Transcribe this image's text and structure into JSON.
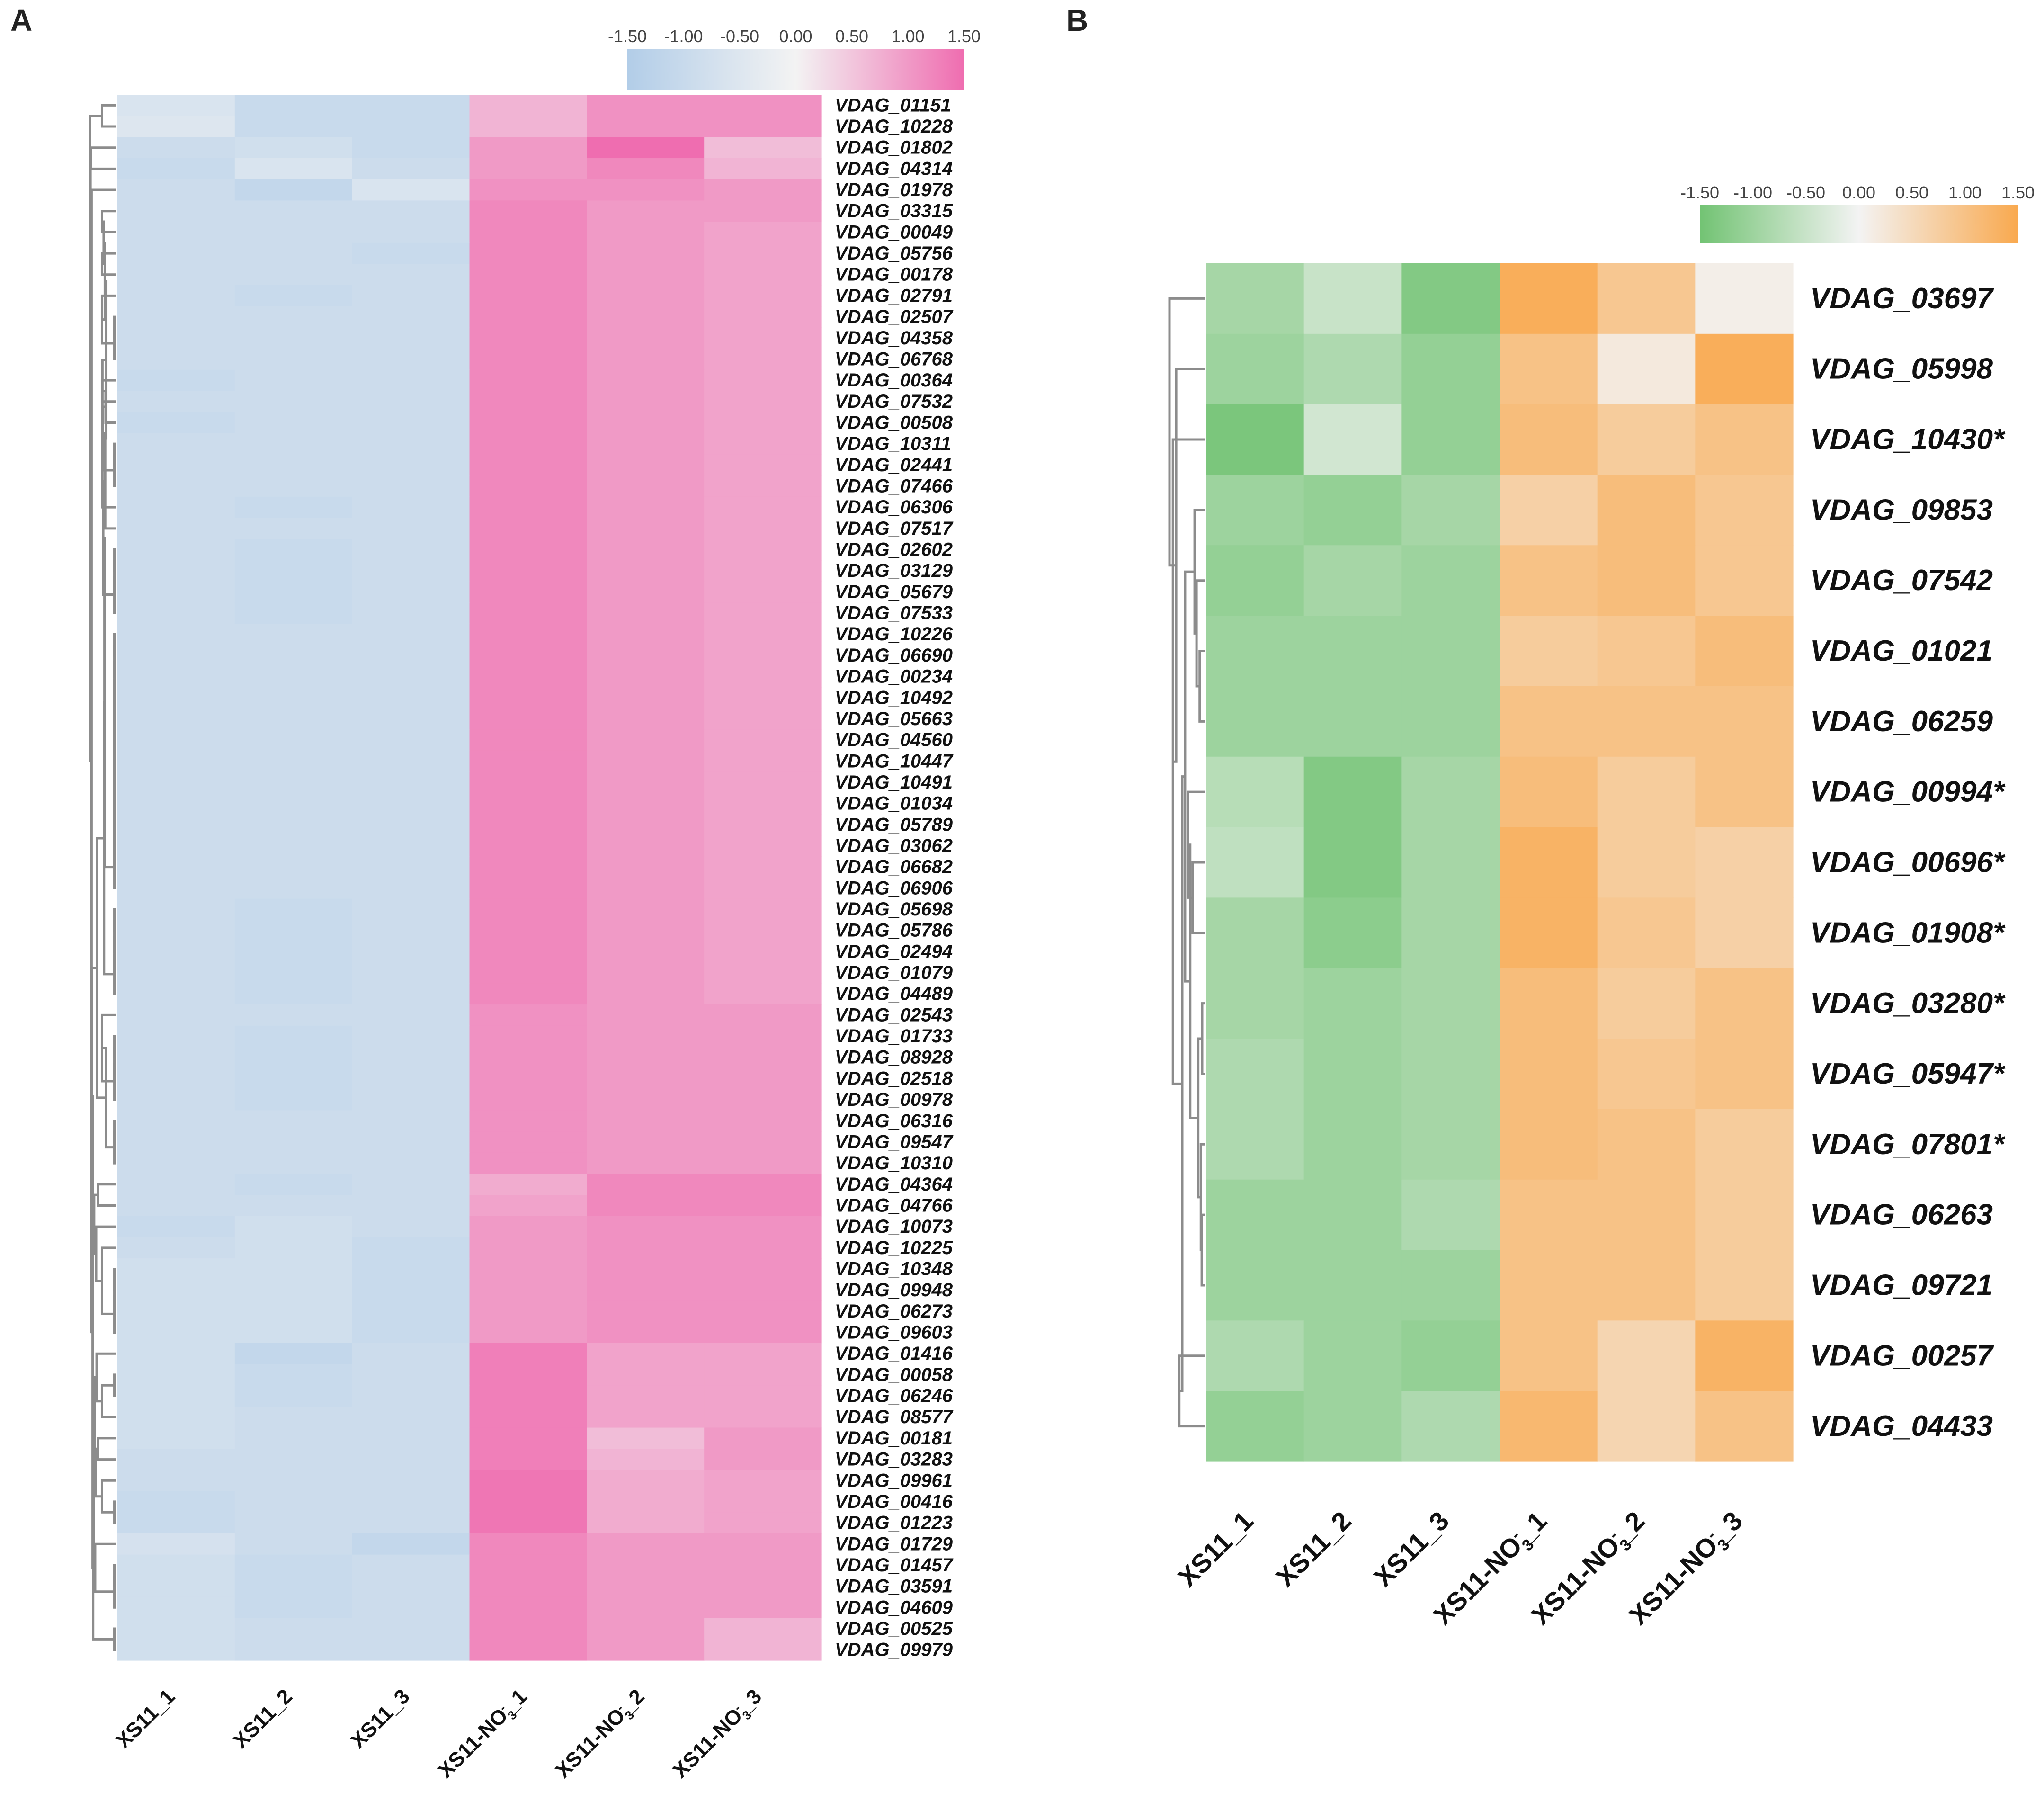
{
  "chart_data": [
    {
      "type": "heatmap",
      "panel_label": "A",
      "scale": {
        "min": -1.5,
        "max": 1.5,
        "ticks": [
          "-1.50",
          "-1.00",
          "-0.50",
          "0.00",
          "0.50",
          "1.00",
          "1.50"
        ],
        "colors": {
          "low": "#b2cde8",
          "mid": "#f3f3f3",
          "high": "#ef6db0"
        }
      },
      "columns": [
        "XS11_1",
        "XS11_2",
        "XS11_3",
        "XS11-NO3-_1",
        "XS11-NO3-_2",
        "XS11-NO3-_3"
      ],
      "column_labels": [
        {
          "base": "XS11_1",
          "sub": "",
          "sup": "",
          "tail": ""
        },
        {
          "base": "XS11_2",
          "sub": "",
          "sup": "",
          "tail": ""
        },
        {
          "base": "XS11_3",
          "sub": "",
          "sup": "",
          "tail": ""
        },
        {
          "base": "XS11-NO",
          "sub": "3",
          "sup": "-",
          "tail": "_1"
        },
        {
          "base": "XS11-NO",
          "sub": "3",
          "sup": "-",
          "tail": "_2"
        },
        {
          "base": "XS11-NO",
          "sub": "3",
          "sup": "-",
          "tail": "_3"
        }
      ],
      "rows": [
        "VDAG_01151",
        "VDAG_10228",
        "VDAG_01802",
        "VDAG_04314",
        "VDAG_01978",
        "VDAG_03315",
        "VDAG_00049",
        "VDAG_05756",
        "VDAG_00178",
        "VDAG_02791",
        "VDAG_02507",
        "VDAG_04358",
        "VDAG_06768",
        "VDAG_00364",
        "VDAG_07532",
        "VDAG_00508",
        "VDAG_10311",
        "VDAG_02441",
        "VDAG_07466",
        "VDAG_06306",
        "VDAG_07517",
        "VDAG_02602",
        "VDAG_03129",
        "VDAG_05679",
        "VDAG_07533",
        "VDAG_10226",
        "VDAG_06690",
        "VDAG_00234",
        "VDAG_10492",
        "VDAG_05663",
        "VDAG_04560",
        "VDAG_10447",
        "VDAG_10491",
        "VDAG_01034",
        "VDAG_05789",
        "VDAG_03062",
        "VDAG_06682",
        "VDAG_06906",
        "VDAG_05698",
        "VDAG_05786",
        "VDAG_02494",
        "VDAG_01079",
        "VDAG_04489",
        "VDAG_02543",
        "VDAG_01733",
        "VDAG_08928",
        "VDAG_02518",
        "VDAG_00978",
        "VDAG_06316",
        "VDAG_09547",
        "VDAG_10310",
        "VDAG_04364",
        "VDAG_04766",
        "VDAG_10073",
        "VDAG_10225",
        "VDAG_10348",
        "VDAG_09948",
        "VDAG_06273",
        "VDAG_09603",
        "VDAG_01416",
        "VDAG_00058",
        "VDAG_06246",
        "VDAG_08577",
        "VDAG_00181",
        "VDAG_03283",
        "VDAG_09961",
        "VDAG_00416",
        "VDAG_01223",
        "VDAG_01729",
        "VDAG_01457",
        "VDAG_03591",
        "VDAG_04609",
        "VDAG_00525",
        "VDAG_09979"
      ],
      "values": [
        [
          -0.6,
          -1.0,
          -1.0,
          0.7,
          1.1,
          1.1
        ],
        [
          -0.5,
          -1.0,
          -1.0,
          0.7,
          1.1,
          1.1
        ],
        [
          -0.9,
          -0.8,
          -1.0,
          1.0,
          1.5,
          0.6
        ],
        [
          -1.0,
          -0.6,
          -0.9,
          1.0,
          1.2,
          0.7
        ],
        [
          -0.9,
          -1.1,
          -0.6,
          1.1,
          1.1,
          1.0
        ],
        [
          -0.9,
          -0.9,
          -0.9,
          1.2,
          1.0,
          1.0
        ],
        [
          -0.9,
          -0.9,
          -0.9,
          1.2,
          1.0,
          0.9
        ],
        [
          -0.9,
          -0.9,
          -1.0,
          1.2,
          1.0,
          0.9
        ],
        [
          -0.9,
          -0.9,
          -0.9,
          1.2,
          1.0,
          0.9
        ],
        [
          -0.9,
          -1.0,
          -0.9,
          1.2,
          1.0,
          0.9
        ],
        [
          -0.9,
          -0.9,
          -0.9,
          1.2,
          1.0,
          0.9
        ],
        [
          -0.9,
          -0.9,
          -0.9,
          1.2,
          1.0,
          0.9
        ],
        [
          -0.9,
          -0.9,
          -0.9,
          1.2,
          1.0,
          0.9
        ],
        [
          -1.0,
          -0.9,
          -0.9,
          1.2,
          1.0,
          0.9
        ],
        [
          -0.9,
          -0.9,
          -0.9,
          1.2,
          1.0,
          0.9
        ],
        [
          -1.0,
          -0.9,
          -0.9,
          1.2,
          1.0,
          0.9
        ],
        [
          -0.9,
          -0.9,
          -0.9,
          1.2,
          1.0,
          0.9
        ],
        [
          -0.9,
          -0.9,
          -0.9,
          1.2,
          1.0,
          0.9
        ],
        [
          -0.9,
          -0.9,
          -0.9,
          1.2,
          1.0,
          0.9
        ],
        [
          -0.9,
          -1.0,
          -0.9,
          1.2,
          1.0,
          0.9
        ],
        [
          -0.9,
          -0.9,
          -0.9,
          1.2,
          1.0,
          0.9
        ],
        [
          -0.9,
          -1.0,
          -0.9,
          1.2,
          1.0,
          0.9
        ],
        [
          -0.9,
          -1.0,
          -0.9,
          1.2,
          1.0,
          0.9
        ],
        [
          -0.9,
          -1.0,
          -0.9,
          1.2,
          1.0,
          0.9
        ],
        [
          -0.9,
          -1.0,
          -0.9,
          1.2,
          1.0,
          0.9
        ],
        [
          -0.9,
          -0.9,
          -0.9,
          1.2,
          1.0,
          0.9
        ],
        [
          -0.9,
          -0.9,
          -0.9,
          1.2,
          1.0,
          0.9
        ],
        [
          -0.9,
          -0.9,
          -0.9,
          1.2,
          1.0,
          0.9
        ],
        [
          -0.9,
          -0.9,
          -0.9,
          1.2,
          1.0,
          0.9
        ],
        [
          -0.9,
          -0.9,
          -0.9,
          1.2,
          1.0,
          0.9
        ],
        [
          -0.9,
          -0.9,
          -0.9,
          1.2,
          1.0,
          0.9
        ],
        [
          -0.9,
          -0.9,
          -0.9,
          1.2,
          1.0,
          0.9
        ],
        [
          -0.9,
          -0.9,
          -0.9,
          1.2,
          1.0,
          0.9
        ],
        [
          -0.9,
          -0.9,
          -0.9,
          1.2,
          1.0,
          0.9
        ],
        [
          -0.9,
          -0.9,
          -0.9,
          1.2,
          1.0,
          0.9
        ],
        [
          -0.9,
          -0.9,
          -0.9,
          1.2,
          1.0,
          0.9
        ],
        [
          -0.9,
          -0.9,
          -0.9,
          1.2,
          1.0,
          0.9
        ],
        [
          -0.9,
          -0.9,
          -0.9,
          1.2,
          1.0,
          0.9
        ],
        [
          -0.9,
          -1.0,
          -0.9,
          1.2,
          1.0,
          0.9
        ],
        [
          -0.9,
          -1.0,
          -0.9,
          1.2,
          1.0,
          0.9
        ],
        [
          -0.9,
          -1.0,
          -0.9,
          1.2,
          1.0,
          0.9
        ],
        [
          -0.9,
          -1.0,
          -0.9,
          1.2,
          1.0,
          0.9
        ],
        [
          -0.9,
          -1.0,
          -0.9,
          1.2,
          1.0,
          0.9
        ],
        [
          -0.9,
          -0.9,
          -0.9,
          1.1,
          1.0,
          1.0
        ],
        [
          -0.9,
          -1.0,
          -0.9,
          1.1,
          1.0,
          1.0
        ],
        [
          -0.9,
          -1.0,
          -0.9,
          1.1,
          1.0,
          1.0
        ],
        [
          -0.9,
          -1.0,
          -0.9,
          1.1,
          1.0,
          1.0
        ],
        [
          -0.9,
          -1.0,
          -0.9,
          1.1,
          1.0,
          1.0
        ],
        [
          -0.9,
          -0.9,
          -0.9,
          1.1,
          1.0,
          1.0
        ],
        [
          -0.9,
          -0.9,
          -0.9,
          1.1,
          1.0,
          1.0
        ],
        [
          -0.9,
          -0.9,
          -0.9,
          1.1,
          1.0,
          1.0
        ],
        [
          -0.9,
          -1.0,
          -0.9,
          0.8,
          1.2,
          1.2
        ],
        [
          -0.9,
          -0.9,
          -0.9,
          0.9,
          1.2,
          1.2
        ],
        [
          -1.0,
          -0.8,
          -0.9,
          1.0,
          1.1,
          1.1
        ],
        [
          -0.9,
          -0.8,
          -1.0,
          1.0,
          1.1,
          1.1
        ],
        [
          -0.8,
          -0.8,
          -1.0,
          1.0,
          1.1,
          1.1
        ],
        [
          -0.8,
          -0.8,
          -1.0,
          1.0,
          1.1,
          1.1
        ],
        [
          -0.8,
          -0.8,
          -1.0,
          1.0,
          1.1,
          1.1
        ],
        [
          -0.8,
          -0.8,
          -1.0,
          1.0,
          1.1,
          1.1
        ],
        [
          -0.8,
          -1.1,
          -0.9,
          1.3,
          0.9,
          0.9
        ],
        [
          -0.8,
          -1.0,
          -0.9,
          1.3,
          0.9,
          0.9
        ],
        [
          -0.8,
          -1.0,
          -0.9,
          1.3,
          0.9,
          0.9
        ],
        [
          -0.8,
          -0.9,
          -0.9,
          1.3,
          0.9,
          0.9
        ],
        [
          -0.8,
          -0.9,
          -0.9,
          1.3,
          0.6,
          1.0
        ],
        [
          -0.9,
          -0.9,
          -0.9,
          1.3,
          0.7,
          1.0
        ],
        [
          -0.9,
          -0.9,
          -0.9,
          1.4,
          0.8,
          0.9
        ],
        [
          -1.0,
          -0.9,
          -0.9,
          1.4,
          0.8,
          0.9
        ],
        [
          -1.0,
          -0.9,
          -0.9,
          1.4,
          0.8,
          0.9
        ],
        [
          -0.7,
          -0.9,
          -1.1,
          1.2,
          1.0,
          1.0
        ],
        [
          -0.8,
          -1.0,
          -0.9,
          1.2,
          1.0,
          1.0
        ],
        [
          -0.8,
          -1.0,
          -0.9,
          1.2,
          1.0,
          1.0
        ],
        [
          -0.8,
          -1.0,
          -0.9,
          1.2,
          1.0,
          1.0
        ],
        [
          -0.8,
          -0.9,
          -0.9,
          1.2,
          1.0,
          0.7
        ],
        [
          -0.8,
          -0.9,
          -0.9,
          1.2,
          1.0,
          0.7
        ]
      ]
    },
    {
      "type": "heatmap",
      "panel_label": "B",
      "scale": {
        "min": -1.5,
        "max": 1.5,
        "ticks": [
          "-1.50",
          "-1.00",
          "-0.50",
          "0.00",
          "0.50",
          "1.00",
          "1.50"
        ],
        "colors": {
          "low": "#72c373",
          "mid": "#f3f3f3",
          "high": "#f9a94f"
        }
      },
      "columns": [
        "XS11_1",
        "XS11_2",
        "XS11_3",
        "XS11-NO3-_1",
        "XS11-NO3-_2",
        "XS11-NO3-_3"
      ],
      "column_labels": [
        {
          "base": "XS11_1",
          "sub": "",
          "sup": "",
          "tail": ""
        },
        {
          "base": "XS11_2",
          "sub": "",
          "sup": "",
          "tail": ""
        },
        {
          "base": "XS11_3",
          "sub": "",
          "sup": "",
          "tail": ""
        },
        {
          "base": "XS11-NO",
          "sub": "3",
          "sup": "-",
          "tail": "_1"
        },
        {
          "base": "XS11-NO",
          "sub": "3",
          "sup": "-",
          "tail": "_2"
        },
        {
          "base": "XS11-NO",
          "sub": "3",
          "sup": "-",
          "tail": "_3"
        }
      ],
      "rows": [
        "VDAG_03697",
        "VDAG_05998",
        "VDAG_10430*",
        "VDAG_09853",
        "VDAG_07542",
        "VDAG_01021",
        "VDAG_06259",
        "VDAG_00994*",
        "VDAG_00696*",
        "VDAG_01908*",
        "VDAG_03280*",
        "VDAG_05947*",
        "VDAG_07801*",
        "VDAG_06263",
        "VDAG_09721",
        "VDAG_00257",
        "VDAG_04433"
      ],
      "values": [
        [
          -0.9,
          -0.5,
          -1.3,
          1.4,
          0.9,
          0.1
        ],
        [
          -1.0,
          -0.8,
          -1.1,
          1.0,
          0.2,
          1.4
        ],
        [
          -1.4,
          -0.4,
          -1.1,
          1.1,
          0.8,
          1.0
        ],
        [
          -1.0,
          -1.1,
          -0.9,
          0.7,
          1.1,
          0.9
        ],
        [
          -1.1,
          -0.9,
          -1.0,
          1.0,
          1.1,
          0.9
        ],
        [
          -1.0,
          -1.0,
          -1.0,
          0.8,
          0.9,
          1.1
        ],
        [
          -1.0,
          -1.0,
          -1.0,
          1.0,
          1.0,
          1.0
        ],
        [
          -0.7,
          -1.3,
          -0.9,
          1.1,
          0.8,
          1.0
        ],
        [
          -0.6,
          -1.3,
          -0.9,
          1.3,
          0.8,
          0.7
        ],
        [
          -0.9,
          -1.2,
          -0.9,
          1.3,
          0.9,
          0.7
        ],
        [
          -0.9,
          -1.0,
          -0.9,
          1.1,
          0.8,
          1.0
        ],
        [
          -0.8,
          -1.0,
          -0.9,
          1.1,
          0.9,
          1.0
        ],
        [
          -0.8,
          -1.0,
          -0.9,
          1.1,
          1.0,
          0.8
        ],
        [
          -1.0,
          -1.0,
          -0.8,
          1.0,
          1.0,
          0.8
        ],
        [
          -1.0,
          -1.0,
          -1.0,
          1.0,
          1.0,
          0.8
        ],
        [
          -0.8,
          -1.0,
          -1.1,
          1.0,
          0.6,
          1.3
        ],
        [
          -1.1,
          -1.0,
          -0.8,
          1.2,
          0.6,
          1.0
        ]
      ]
    }
  ]
}
